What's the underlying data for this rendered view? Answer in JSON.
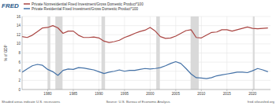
{
  "chart_data": {
    "type": "line",
    "logo": "FRED",
    "y_label": "% of GDP",
    "note": "Shaded areas indicate U.S. recessions",
    "source": "Source: U.S. Bureau of Economic Analysis",
    "site": "fred.stlouisfed.org",
    "x": [
      1975,
      1976,
      1977,
      1978,
      1979,
      1980,
      1981,
      1982,
      1983,
      1984,
      1985,
      1986,
      1987,
      1988,
      1989,
      1990,
      1991,
      1992,
      1993,
      1994,
      1995,
      1996,
      1997,
      1998,
      1999,
      2000,
      2001,
      2002,
      2003,
      2004,
      2005,
      2006,
      2007,
      2008,
      2009,
      2010,
      2011,
      2012,
      2013,
      2014,
      2015,
      2016,
      2017,
      2018,
      2019,
      2020,
      2021,
      2022,
      2023
    ],
    "series": [
      {
        "name": "Private Nonresidential Fixed Investment/Gross Domestic Product*100",
        "color": "#aa4643",
        "values": [
          11.6,
          11.4,
          11.9,
          12.7,
          13.5,
          13.6,
          14.0,
          13.5,
          12.3,
          12.8,
          12.8,
          11.9,
          11.4,
          11.4,
          11.5,
          11.3,
          10.6,
          10.3,
          10.5,
          10.8,
          11.4,
          11.8,
          12.3,
          12.7,
          13.0,
          13.6,
          12.8,
          11.6,
          11.2,
          11.3,
          11.7,
          12.3,
          12.9,
          13.1,
          11.4,
          11.3,
          11.9,
          12.5,
          12.6,
          13.1,
          13.1,
          12.8,
          13.1,
          13.4,
          13.7,
          13.4,
          13.3,
          13.4,
          13.5
        ]
      },
      {
        "name": "Private Residential Fixed Investment/Gross Domestic Product*100",
        "color": "#4572a7",
        "values": [
          3.8,
          4.5,
          5.2,
          5.5,
          5.3,
          4.4,
          3.9,
          3.1,
          4.2,
          4.5,
          4.4,
          4.8,
          4.7,
          4.5,
          4.3,
          3.9,
          3.5,
          3.8,
          4.0,
          4.3,
          4.0,
          4.2,
          4.2,
          4.4,
          4.6,
          4.5,
          4.6,
          4.8,
          5.2,
          5.7,
          6.1,
          5.7,
          4.6,
          3.4,
          2.6,
          2.5,
          2.4,
          2.6,
          3.0,
          3.2,
          3.4,
          3.6,
          3.8,
          3.8,
          3.7,
          4.1,
          4.6,
          4.3,
          3.9
        ]
      }
    ],
    "recessions": [
      [
        1980.0,
        1980.5
      ],
      [
        1981.5,
        1982.9
      ],
      [
        1990.5,
        1991.2
      ],
      [
        2001.2,
        2001.9
      ],
      [
        2007.9,
        2009.5
      ],
      [
        2020.1,
        2020.4
      ]
    ],
    "xlim": [
      1975,
      2023.5
    ],
    "xticks": [
      1980,
      1985,
      1990,
      1995,
      2000,
      2005,
      2010,
      2015,
      2020
    ],
    "ylim": [
      0,
      16
    ],
    "yticks": [
      0,
      2,
      4,
      6,
      8,
      10,
      12,
      14,
      16
    ],
    "grid": true
  }
}
